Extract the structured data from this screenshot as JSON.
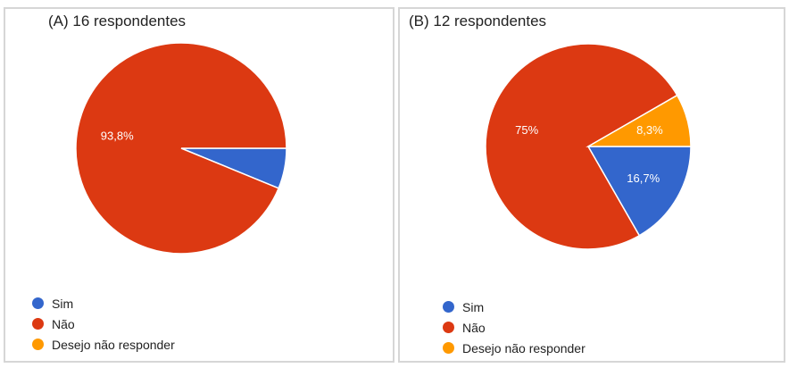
{
  "chart_data": [
    {
      "type": "pie",
      "title": "(A) 16 respondentes",
      "categories": [
        "Sim",
        "Não",
        "Desejo não responder"
      ],
      "values": [
        6.2,
        93.8,
        0
      ],
      "data_labels": [
        "",
        "93,8%",
        ""
      ],
      "colors": [
        "#3366cc",
        "#dc3912",
        "#ff9900"
      ],
      "legend": "bottom-left"
    },
    {
      "type": "pie",
      "title": "(B) 12 respondentes",
      "categories": [
        "Sim",
        "Não",
        "Desejo não responder"
      ],
      "values": [
        16.7,
        75,
        8.3
      ],
      "data_labels": [
        "16,7%",
        "75%",
        "8,3%"
      ],
      "colors": [
        "#3366cc",
        "#dc3912",
        "#ff9900"
      ],
      "legend": "bottom-left"
    }
  ]
}
